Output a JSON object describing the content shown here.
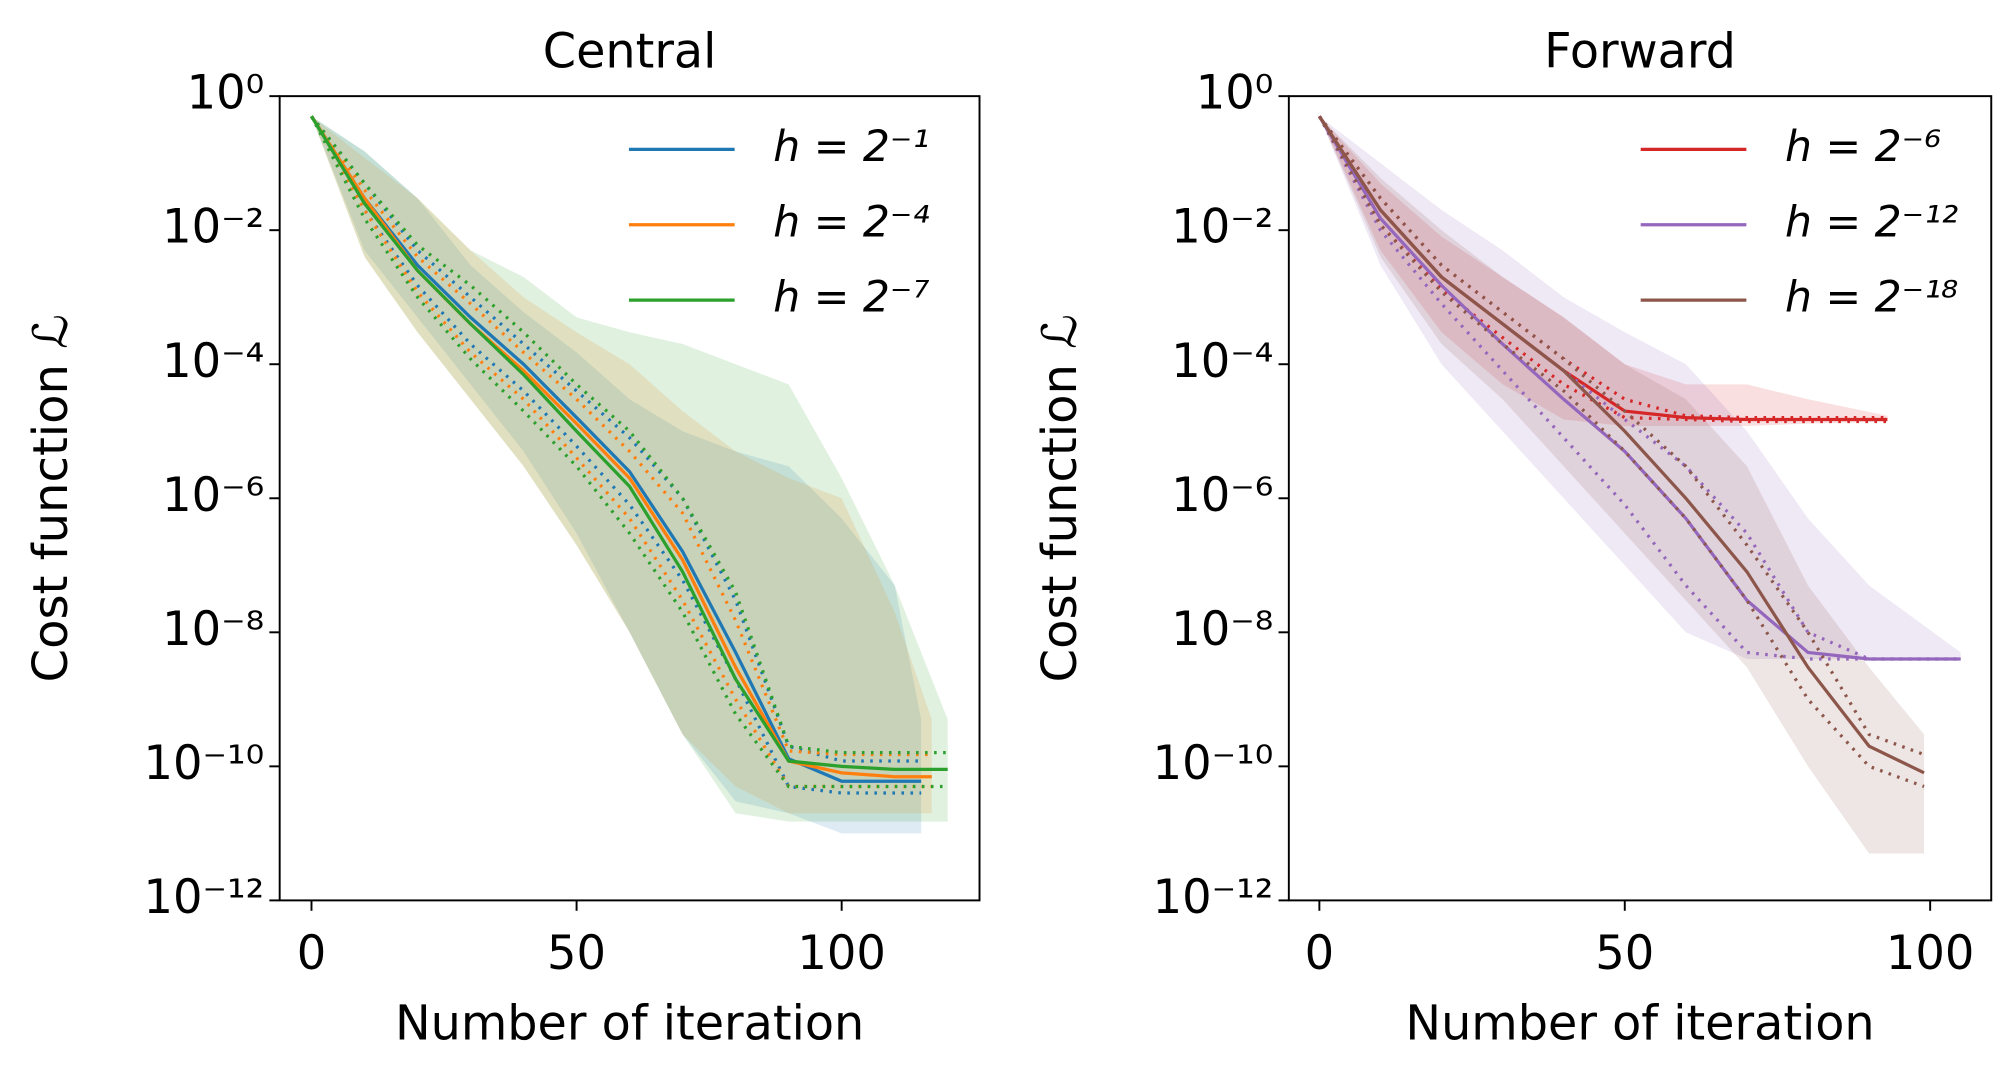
{
  "chart_data": [
    {
      "type": "line",
      "title": "Central",
      "xlabel": "Number of iteration",
      "ylabel": "Cost function ℒ",
      "ylog": true,
      "legend": "upper right",
      "xlim": [
        -6,
        126
      ],
      "ylim": [
        1e-12,
        1
      ],
      "xticks": [
        0,
        50,
        100
      ],
      "yticks": [
        {
          "value": 1,
          "label": "10⁰"
        },
        {
          "value": 0.01,
          "label": "10⁻²"
        },
        {
          "value": 0.0001,
          "label": "10⁻⁴"
        },
        {
          "value": 1e-06,
          "label": "10⁻⁶"
        },
        {
          "value": 1e-08,
          "label": "10⁻⁸"
        },
        {
          "value": 1e-10,
          "label": "10⁻¹⁰"
        },
        {
          "value": 1e-12,
          "label": "10⁻¹²"
        }
      ],
      "series": [
        {
          "name": "h = 2⁻¹",
          "color": "#1f77b4",
          "x": [
            0,
            10,
            20,
            30,
            40,
            50,
            60,
            70,
            80,
            90,
            100,
            110,
            115
          ],
          "values": [
            0.5,
            0.03,
            0.003,
            0.0005,
            0.0001,
            1.6e-05,
            2.5e-06,
            1.6e-07,
            5e-09,
            1.3e-10,
            6e-11,
            6e-11,
            6e-11
          ],
          "q75": [
            0.5,
            0.05,
            0.005,
            0.001,
            0.0002,
            4e-05,
            8e-06,
            1e-06,
            3e-08,
            2e-10,
            1.2e-10,
            1.2e-10,
            1.2e-10
          ],
          "q25": [
            0.5,
            0.02,
            0.0015,
            0.0002,
            4e-05,
            6e-06,
            8e-07,
            6e-08,
            2e-09,
            5e-11,
            4e-11,
            4e-11,
            4e-11
          ],
          "min": [
            0.5,
            0.005,
            0.0005,
            5e-05,
            5e-06,
            3e-07,
            1e-08,
            3e-10,
            3e-11,
            2e-11,
            1e-11,
            1e-11,
            1e-11
          ],
          "max": [
            0.5,
            0.15,
            0.03,
            0.003,
            0.0006,
            0.00015,
            3e-05,
            1e-05,
            5e-06,
            3e-06,
            5e-07,
            5e-08,
            5e-10
          ]
        },
        {
          "name": "h = 2⁻⁴",
          "color": "#ff7f0e",
          "x": [
            0,
            10,
            20,
            30,
            40,
            50,
            60,
            70,
            80,
            90,
            100,
            110,
            117
          ],
          "values": [
            0.5,
            0.03,
            0.0025,
            0.0004,
            8e-05,
            1.3e-05,
            2e-06,
            1.2e-07,
            3e-09,
            1.2e-10,
            8e-11,
            7e-11,
            7e-11
          ],
          "q75": [
            0.5,
            0.04,
            0.004,
            0.0008,
            0.00015,
            3e-05,
            5e-06,
            6e-07,
            1.5e-08,
            1.7e-10,
            1.5e-10,
            1.5e-10,
            1.5e-10
          ],
          "q25": [
            0.5,
            0.02,
            0.0012,
            0.00015,
            3e-05,
            4e-06,
            5e-07,
            3e-08,
            1e-09,
            5e-11,
            5e-11,
            5e-11,
            5e-11
          ],
          "min": [
            0.5,
            0.004,
            0.0003,
            3e-05,
            3e-06,
            2e-07,
            1e-08,
            3e-10,
            5e-11,
            2e-11,
            2e-11,
            2e-11,
            2e-11
          ],
          "max": [
            0.5,
            0.12,
            0.03,
            0.005,
            0.001,
            0.0003,
            0.0001,
            2e-05,
            5e-06,
            2e-06,
            1e-06,
            2e-08,
            5e-10
          ]
        },
        {
          "name": "h = 2⁻⁷",
          "color": "#2ca02c",
          "x": [
            0,
            10,
            20,
            30,
            40,
            50,
            60,
            70,
            80,
            90,
            100,
            110,
            120
          ],
          "values": [
            0.5,
            0.025,
            0.0025,
            0.0004,
            7e-05,
            1e-05,
            1.5e-06,
            8e-08,
            2e-09,
            1.2e-10,
            1e-10,
            9e-11,
            9e-11
          ],
          "q75": [
            0.5,
            0.05,
            0.006,
            0.0015,
            0.0003,
            5e-05,
            1e-05,
            1e-06,
            4e-08,
            2e-10,
            1.6e-10,
            1.6e-10,
            1.6e-10
          ],
          "q25": [
            0.5,
            0.015,
            0.001,
            0.00012,
            2e-05,
            3e-06,
            3e-07,
            2e-08,
            6e-10,
            5e-11,
            5e-11,
            5e-11,
            5e-11
          ],
          "min": [
            0.5,
            0.004,
            0.0003,
            3e-05,
            3e-06,
            2e-07,
            1e-08,
            3e-10,
            2e-11,
            1.5e-11,
            1.5e-11,
            1.5e-11,
            1.5e-11
          ],
          "max": [
            0.5,
            0.15,
            0.03,
            0.005,
            0.002,
            0.0005,
            0.0003,
            0.0002,
            0.0001,
            5e-05,
            2e-06,
            5e-08,
            5e-10
          ]
        }
      ]
    },
    {
      "type": "line",
      "title": "Forward",
      "xlabel": "Number of iteration",
      "ylabel": "Cost function ℒ",
      "ylog": true,
      "legend": "upper right",
      "xlim": [
        -5,
        110
      ],
      "ylim": [
        1e-12,
        1
      ],
      "xticks": [
        0,
        50,
        100
      ],
      "yticks": [
        {
          "value": 1,
          "label": "10⁰"
        },
        {
          "value": 0.01,
          "label": "10⁻²"
        },
        {
          "value": 0.0001,
          "label": "10⁻⁴"
        },
        {
          "value": 1e-06,
          "label": "10⁻⁶"
        },
        {
          "value": 1e-08,
          "label": "10⁻⁸"
        },
        {
          "value": 1e-10,
          "label": "10⁻¹⁰"
        },
        {
          "value": 1e-12,
          "label": "10⁻¹²"
        }
      ],
      "series": [
        {
          "name": "h = 2⁻⁶",
          "color": "#d62728",
          "x": [
            0,
            10,
            20,
            30,
            40,
            50,
            60,
            70,
            80,
            93
          ],
          "values": [
            0.5,
            0.02,
            0.002,
            0.0004,
            8e-05,
            2e-05,
            1.6e-05,
            1.5e-05,
            1.5e-05,
            1.5e-05
          ],
          "q75": [
            0.5,
            0.03,
            0.003,
            0.0006,
            0.00012,
            3e-05,
            1.7e-05,
            1.6e-05,
            1.6e-05,
            1.6e-05
          ],
          "q25": [
            0.5,
            0.012,
            0.0013,
            0.00025,
            5e-05,
            1.6e-05,
            1.5e-05,
            1.4e-05,
            1.4e-05,
            1.4e-05
          ],
          "min": [
            0.5,
            0.005,
            0.0003,
            5e-05,
            1.5e-05,
            1.2e-05,
            1.2e-05,
            1.2e-05,
            1.3e-05,
            1.4e-05
          ],
          "max": [
            0.5,
            0.05,
            0.008,
            0.002,
            0.0005,
            0.0001,
            5e-05,
            5e-05,
            3e-05,
            1.7e-05
          ]
        },
        {
          "name": "h = 2⁻¹²",
          "color": "#9467bd",
          "x": [
            0,
            10,
            20,
            30,
            40,
            50,
            60,
            70,
            80,
            90,
            105
          ],
          "values": [
            0.5,
            0.015,
            0.0015,
            0.0002,
            3e-05,
            5e-06,
            5e-07,
            3e-08,
            5e-09,
            4e-09,
            4e-09
          ],
          "q75": [
            0.5,
            0.02,
            0.002,
            0.0004,
            8e-05,
            1.5e-05,
            3e-06,
            3e-07,
            1e-08,
            4e-09,
            4e-09
          ],
          "q25": [
            0.5,
            0.01,
            0.0008,
            8e-05,
            8e-06,
            8e-07,
            5e-08,
            5e-09,
            4e-09,
            4e-09,
            4e-09
          ],
          "min": [
            0.5,
            0.003,
            0.0001,
            1e-05,
            1e-06,
            1e-07,
            1e-08,
            4e-09,
            4e-09,
            4e-09,
            4e-09
          ],
          "max": [
            0.5,
            0.1,
            0.02,
            0.005,
            0.001,
            0.0003,
            0.0001,
            1e-05,
            5e-07,
            5e-08,
            5e-09
          ]
        },
        {
          "name": "h = 2⁻¹⁸",
          "color": "#8c564b",
          "x": [
            0,
            10,
            20,
            30,
            40,
            50,
            60,
            70,
            80,
            90,
            99
          ],
          "values": [
            0.5,
            0.02,
            0.002,
            0.0004,
            8e-05,
            1e-05,
            1e-06,
            8e-08,
            3e-09,
            2e-10,
            8e-11
          ],
          "q75": [
            0.5,
            0.03,
            0.003,
            0.0006,
            0.00012,
            2e-05,
            3e-06,
            2e-07,
            1e-08,
            3e-10,
            1.5e-10
          ],
          "q25": [
            0.5,
            0.012,
            0.0012,
            0.0002,
            4e-05,
            5e-06,
            5e-07,
            3e-08,
            1e-09,
            1e-10,
            5e-11
          ],
          "min": [
            0.5,
            0.004,
            0.0002,
            3e-05,
            3e-06,
            3e-07,
            3e-08,
            3e-09,
            1e-10,
            5e-12,
            5e-12
          ],
          "max": [
            0.5,
            0.06,
            0.01,
            0.002,
            0.0005,
            0.0001,
            3e-05,
            3e-06,
            5e-08,
            3e-09,
            3e-10
          ]
        }
      ]
    }
  ]
}
